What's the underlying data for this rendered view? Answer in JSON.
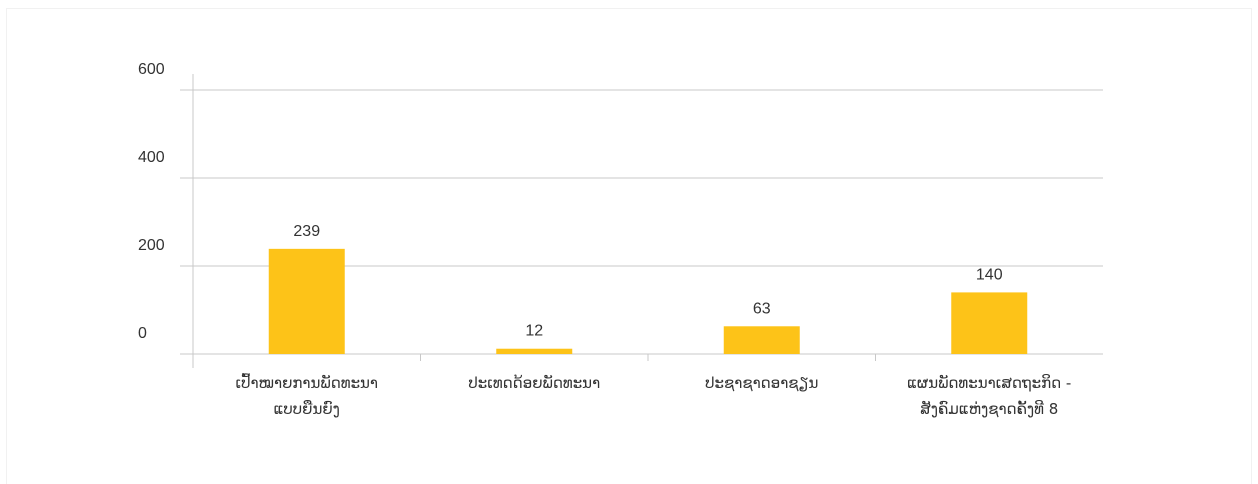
{
  "chart_data": {
    "type": "bar",
    "title": "",
    "xlabel": "",
    "ylabel": "",
    "categories": [
      [
        "ເປົ້າໝາຍການພັດທະນາ",
        "ແບບຍືນຍົງ"
      ],
      [
        "ປະເທດດ້ອຍພັດທະນາ"
      ],
      [
        "ປະຊາຊາດອາຊຽນ"
      ],
      [
        "ແຜນພັດທະນາເສດຖະກິດ -",
        "ສັງຄົມແຫ່ງຊາດຄັ້ງທີ 8"
      ]
    ],
    "values": [
      239,
      12,
      63,
      140
    ],
    "yticks": [
      0,
      200,
      400,
      600
    ],
    "ylim": [
      0,
      600
    ],
    "grid": true,
    "bar_color": "#fdc318",
    "grid_color": "#c8c8c8"
  }
}
